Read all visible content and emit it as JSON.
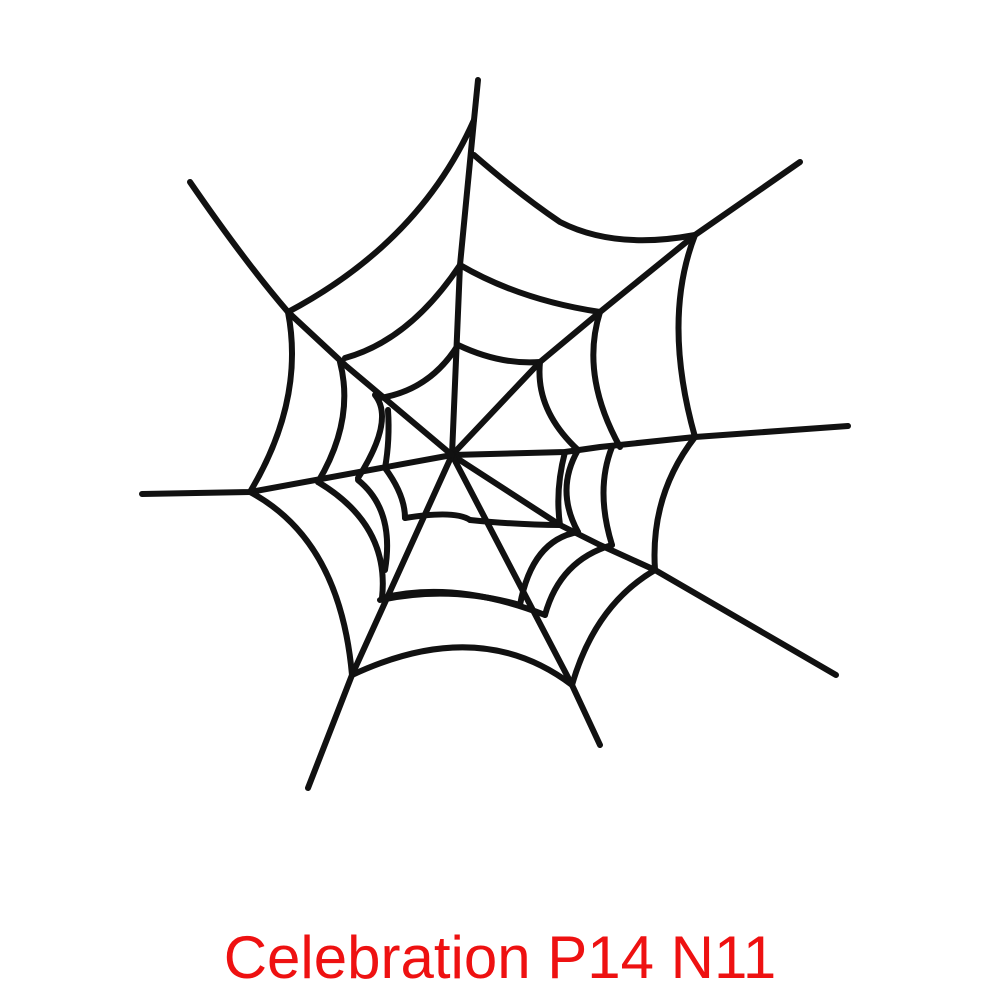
{
  "illustration": {
    "subject": "spider-web-icon",
    "stroke_color": "#111111"
  },
  "caption": {
    "text": "Celebration P14 N11",
    "color": "#ee1111"
  }
}
